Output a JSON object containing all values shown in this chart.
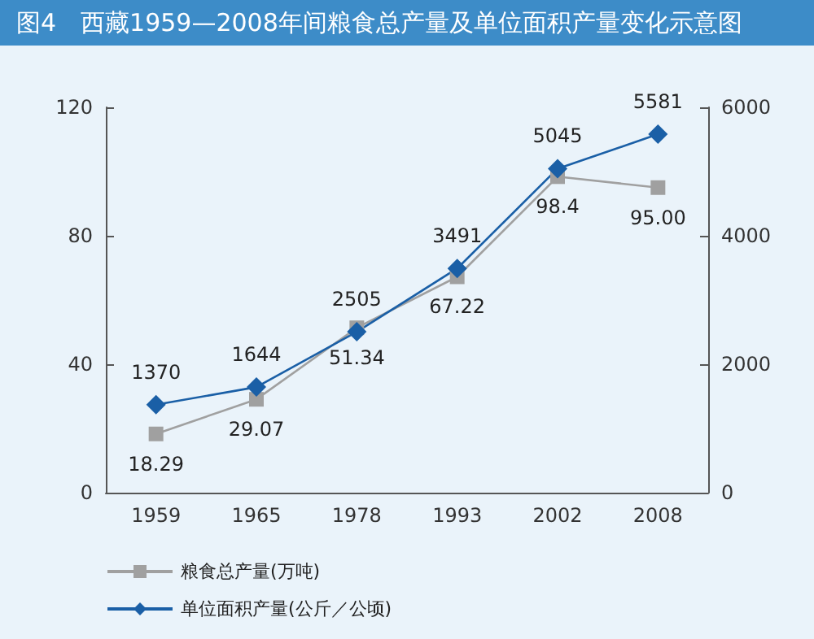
{
  "chart_data": {
    "type": "line",
    "title": "图4　西藏1959—2008年间粮食总产量及单位面积产量变化示意图",
    "categories": [
      "1959",
      "1965",
      "1978",
      "1993",
      "2002",
      "2008"
    ],
    "series": [
      {
        "name": "粮食总产量(万吨)",
        "color": "#a0a0a0",
        "values": [
          18.29,
          29.07,
          51.34,
          67.22,
          98.4,
          95.0
        ],
        "marker": "square",
        "value_labels": [
          "18.29",
          "29.07",
          "51.34",
          "67.22",
          "98.4",
          "95.00"
        ]
      },
      {
        "name": "单位面积产量(公斤／公顷)",
        "color": "#1a5fa6",
        "values": [
          1370,
          1644,
          2505,
          3491,
          5045,
          5581
        ],
        "marker": "diamond",
        "axis": "y2",
        "data_labels": true
      }
    ],
    "ylim": [
      0,
      120
    ],
    "yticks": [
      0,
      40,
      80,
      120
    ],
    "y2lim": [
      0,
      6000
    ],
    "y2ticks": [
      0,
      2000,
      4000,
      6000
    ],
    "grid": false,
    "legend": "bottom left"
  }
}
